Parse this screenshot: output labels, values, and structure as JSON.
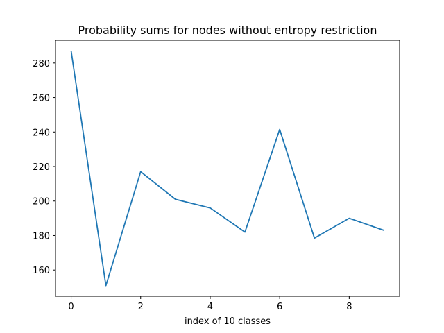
{
  "chart_data": {
    "type": "line",
    "title": "Probability sums for nodes without entropy restriction",
    "xlabel": "index of 10 classes",
    "ylabel": "",
    "x": [
      0,
      1,
      2,
      3,
      4,
      5,
      6,
      7,
      8,
      9
    ],
    "series": [
      {
        "name": "",
        "values": [
          287,
          151,
          217,
          201,
          196,
          182,
          241.5,
          178.5,
          190,
          183
        ]
      }
    ],
    "xlim": [
      -0.45,
      9.45
    ],
    "ylim": [
      144.8,
      293.2
    ],
    "xticks": [
      0,
      2,
      4,
      6,
      8
    ],
    "yticks": [
      160,
      180,
      200,
      220,
      240,
      260,
      280
    ],
    "grid": false,
    "legend": "none",
    "line_color": "#1f77b4"
  }
}
